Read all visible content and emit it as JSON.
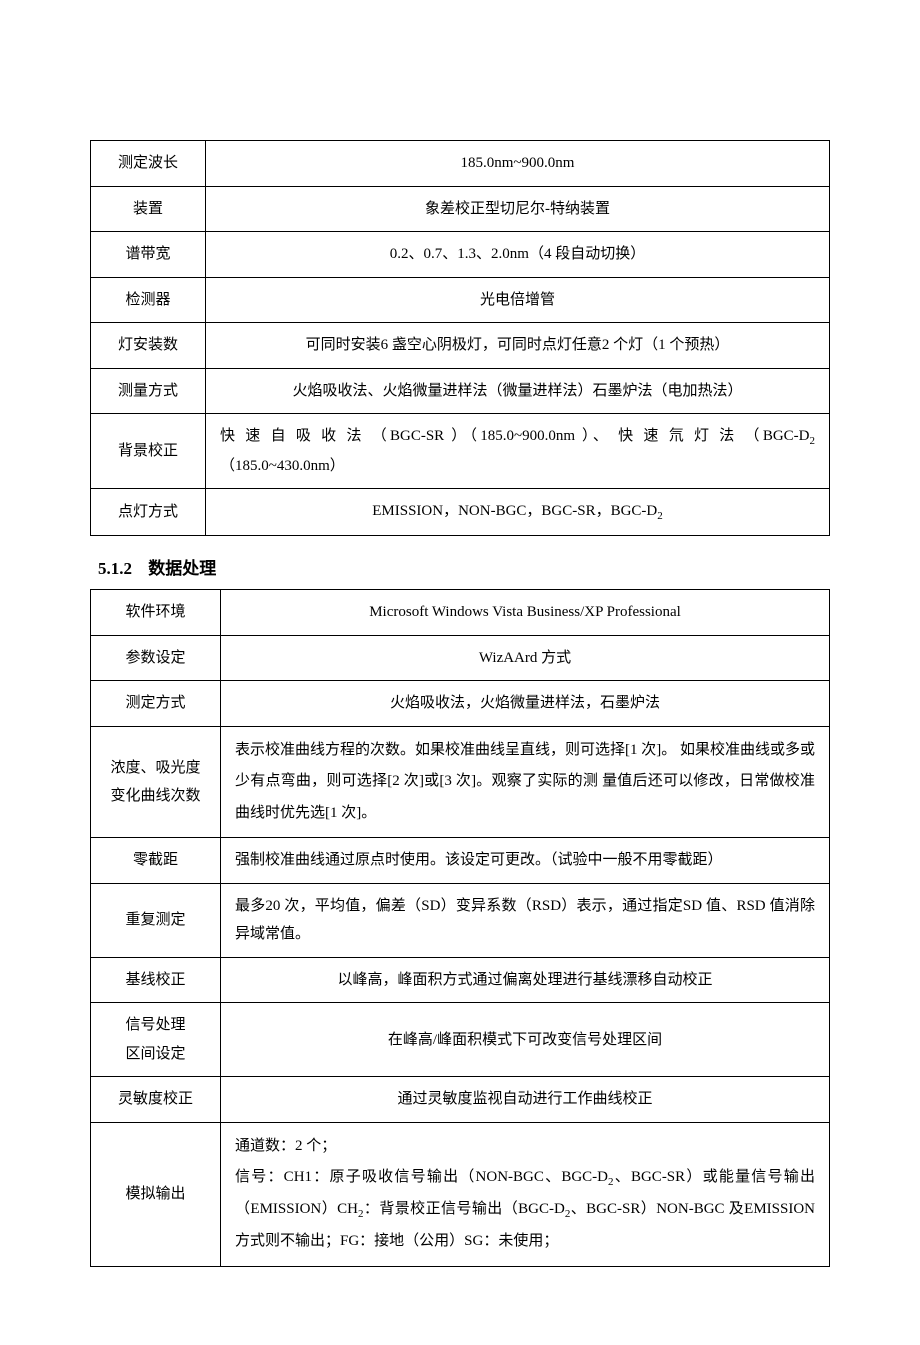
{
  "table1": {
    "rows": [
      {
        "label": "测定波长",
        "value": "185.0nm~900.0nm",
        "align": "center"
      },
      {
        "label": "装置",
        "value": "象差校正型切尼尔-特纳装置",
        "align": "center"
      },
      {
        "label": "谱带宽",
        "value": "0.2、0.7、1.3、2.0nm（4 段自动切换）",
        "align": "center"
      },
      {
        "label": "检测器",
        "value": "光电倍增管",
        "align": "center"
      },
      {
        "label": "灯安装数",
        "value": "可同时安装6 盏空心阴极灯，可同时点灯任意2 个灯（1 个预热）",
        "align": "center"
      },
      {
        "label": "测量方式",
        "value": "火焰吸收法、火焰微量进样法（微量进样法）石墨炉法（电加热法）",
        "align": "center"
      },
      {
        "label": "背景校正",
        "value_html": "快 速 自 吸 收 法 （BGC-SR ）（185.0~900.0nm ）、 快 速 氘 灯 法 （BGC-D<sub>2</sub>（185.0~430.0nm）",
        "align": "left"
      },
      {
        "label": "点灯方式",
        "value_html": "EMISSION，NON-BGC，BGC-SR，BGC-D<sub>2</sub>",
        "align": "center"
      }
    ]
  },
  "section": {
    "number": "5.1.2",
    "title": "数据处理"
  },
  "table2": {
    "rows": [
      {
        "label": "软件环境",
        "value": "Microsoft Windows Vista Business/XP Professional",
        "align": "center"
      },
      {
        "label": "参数设定",
        "value": "WizAArd 方式",
        "align": "center"
      },
      {
        "label": "测定方式",
        "value": "火焰吸收法，火焰微量进样法，石墨炉法",
        "align": "center"
      },
      {
        "label_html": "浓度、吸光度<br>变化曲线次数",
        "value": "表示校准曲线方程的次数。如果校准曲线呈直线，则可选择[1 次]。 如果校准曲线或多或少有点弯曲，则可选择[2 次]或[3 次]。观察了实际的测 量值后还可以修改，日常做校准曲线时优先选[1 次]。",
        "align": "left",
        "multiline": true
      },
      {
        "label": "零截距",
        "value": "强制校准曲线通过原点时使用。该设定可更改。（试验中一般不用零截距）",
        "align": "left"
      },
      {
        "label": "重复测定",
        "value": "最多20 次，平均值，偏差（SD）变异系数（RSD）表示，通过指定SD 值、RSD 值消除异域常值。",
        "align": "left"
      },
      {
        "label": "基线校正",
        "value": "以峰高，峰面积方式通过偏离处理进行基线漂移自动校正",
        "align": "center"
      },
      {
        "label_html": "信号处理<br>区间设定",
        "value": "在峰高/峰面积模式下可改变信号处理区间",
        "align": "center"
      },
      {
        "label": "灵敏度校正",
        "value": "通过灵敏度监视自动进行工作曲线校正",
        "align": "center"
      },
      {
        "label": "模拟输出",
        "value_html": "通道数：2 个；<br>信号：CH1：原子吸收信号输出（NON-BGC、BGC-D<sub>2</sub>、BGC-SR）或能量信号输出（EMISSION）CH<sub>2</sub>：背景校正信号输出（BGC-D<sub>2</sub>、BGC-SR）NON-BGC 及EMISSION 方式则不输出；FG：接地（公用）SG：未使用；",
        "align": "left",
        "multiline": true
      }
    ]
  }
}
